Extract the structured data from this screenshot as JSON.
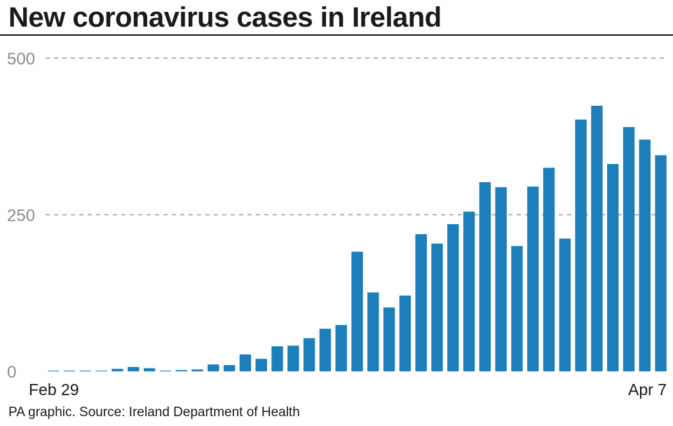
{
  "chart_data": {
    "type": "bar",
    "title": "New coronavirus cases in Ireland",
    "source": "PA graphic. Source: Ireland Department of Health",
    "x_start_label": "Feb 29",
    "x_end_label": "Apr 7",
    "yticks": [
      "0",
      "250",
      "500"
    ],
    "ylim": [
      0,
      500
    ],
    "grid": true,
    "bar_color": "#1c7fbb",
    "grid_color": "#9a9a9a",
    "values": [
      1,
      0,
      0,
      1,
      4,
      7,
      5,
      1,
      2,
      3,
      11,
      10,
      27,
      20,
      40,
      41,
      53,
      68,
      74,
      191,
      126,
      102,
      121,
      219,
      204,
      235,
      255,
      302,
      294,
      200,
      295,
      325,
      212,
      402,
      424,
      331,
      390,
      370,
      345
    ]
  }
}
